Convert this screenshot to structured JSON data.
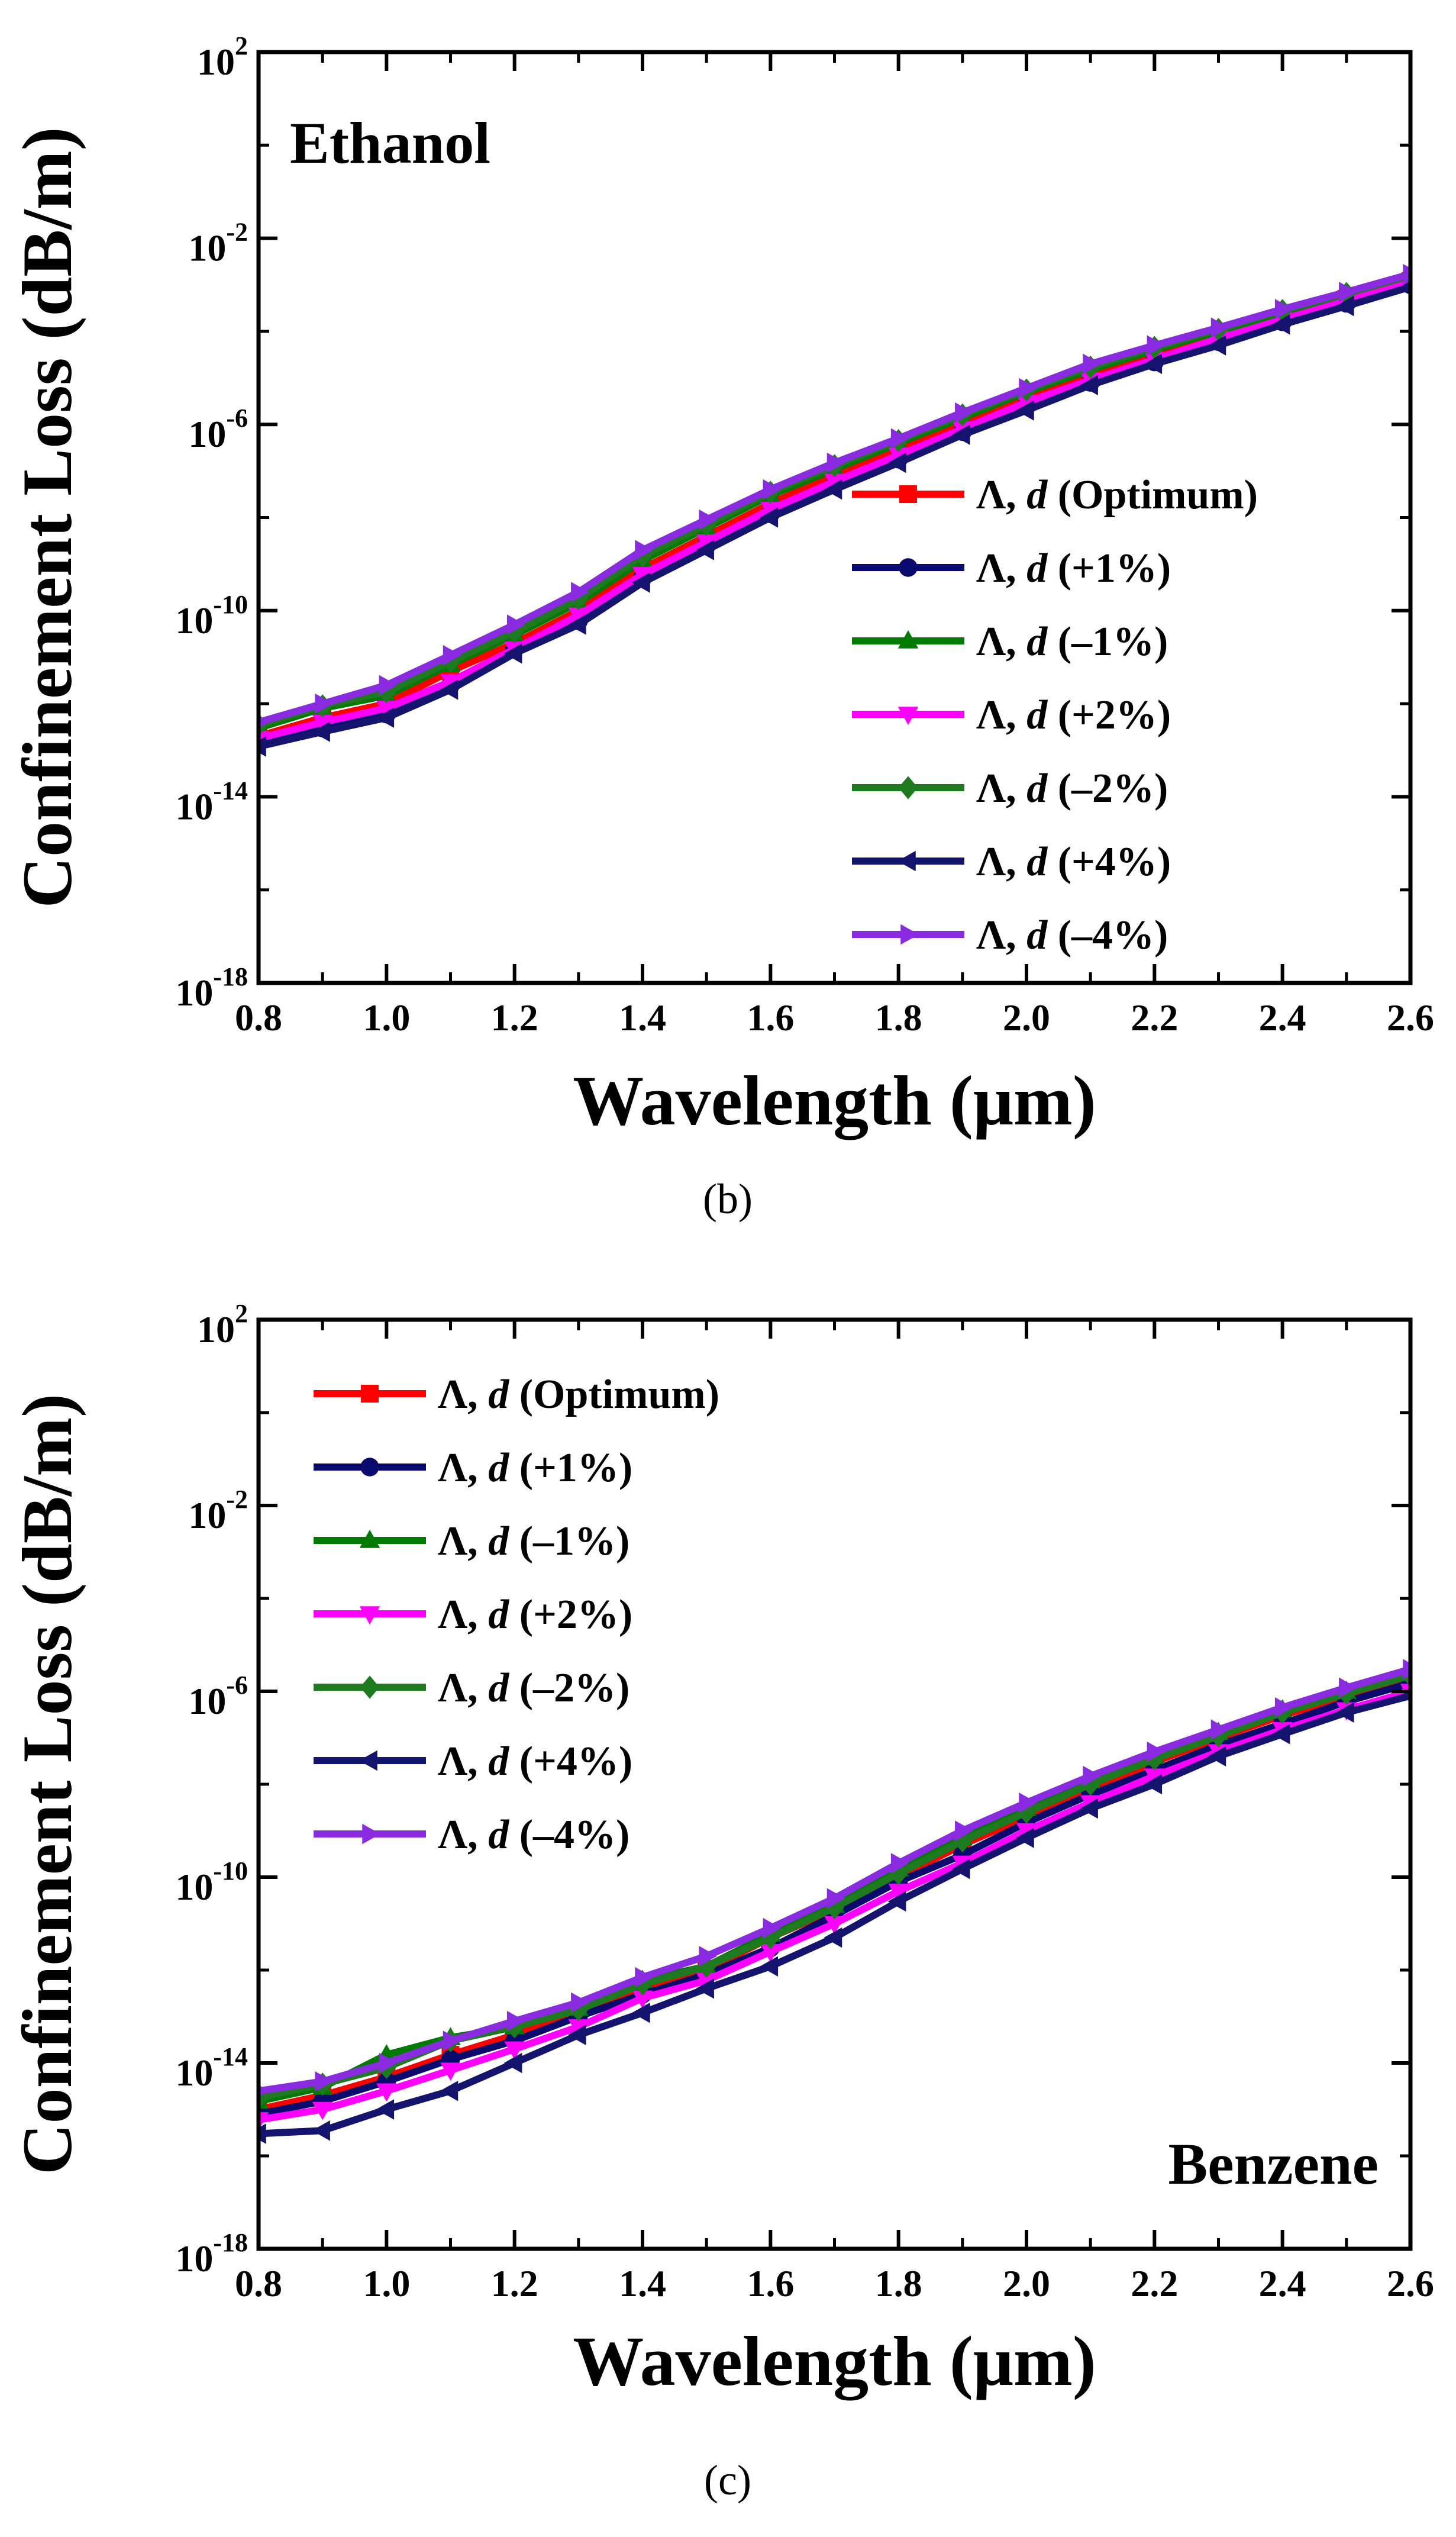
{
  "chart_data": [
    {
      "type": "line",
      "panel_label": "(b)",
      "annotation": "Ethanol",
      "xlabel": "Wavelength (μm)",
      "ylabel": "Confinement Loss (dB/m)",
      "x_scale": "linear",
      "y_scale": "log",
      "xlim": [
        0.8,
        2.6
      ],
      "ylim": [
        1e-18,
        100
      ],
      "x_ticks": [
        "0.8",
        "1.0",
        "1.2",
        "1.4",
        "1.6",
        "1.8",
        "2.0",
        "2.2",
        "2.4",
        "2.6"
      ],
      "y_ticks": [
        {
          "base": "10",
          "exp": "2"
        },
        {
          "base": "10",
          "exp": "-2"
        },
        {
          "base": "10",
          "exp": "-6"
        },
        {
          "base": "10",
          "exp": "-10"
        },
        {
          "base": "10",
          "exp": "-14"
        },
        {
          "base": "10",
          "exp": "-18"
        }
      ],
      "grid": false,
      "legend_position": "right",
      "x": [
        0.8,
        0.9,
        1.0,
        1.1,
        1.2,
        1.3,
        1.4,
        1.5,
        1.6,
        1.7,
        1.8,
        1.9,
        2.0,
        2.1,
        2.2,
        2.3,
        2.4,
        2.5,
        2.6
      ],
      "series": [
        {
          "name_prefix": "Λ, ",
          "name_italic": "d",
          "name_suffix": " (Optimum)",
          "color": "#ff0000",
          "marker": "square",
          "values": [
            2e-13,
            5e-13,
            1e-12,
            5e-12,
            2e-11,
            1e-10,
            8e-10,
            4e-09,
            2e-08,
            8e-08,
            3e-07,
            1e-06,
            4e-06,
            1.2e-05,
            3e-05,
            8e-05,
            0.0002,
            0.0005,
            0.0012
          ]
        },
        {
          "name_prefix": "Λ, ",
          "name_italic": "d",
          "name_suffix": " (+1%)",
          "color": "#0a0a6e",
          "marker": "circle",
          "values": [
            1.5e-13,
            3e-13,
            6e-13,
            2.5e-12,
            1.5e-11,
            6e-11,
            5e-10,
            2.5e-09,
            1.2e-08,
            5e-08,
            1.8e-07,
            7e-07,
            2.5e-06,
            8e-06,
            2.2e-05,
            6e-05,
            0.00016,
            0.0004,
            0.001
          ]
        },
        {
          "name_prefix": "Λ, ",
          "name_italic": "d",
          "name_suffix": " (–1%)",
          "color": "#007a00",
          "marker": "triangle-up",
          "values": [
            3e-13,
            8e-13,
            1.5e-12,
            7e-12,
            3e-11,
            1.5e-10,
            1.2e-09,
            6e-09,
            3e-08,
            1.1e-07,
            4e-07,
            1.4e-06,
            5e-06,
            1.5e-05,
            4e-05,
            0.0001,
            0.00025,
            0.0006,
            0.0015
          ]
        },
        {
          "name_prefix": "Λ, ",
          "name_italic": "d",
          "name_suffix": " (+2%)",
          "color": "#ff00ff",
          "marker": "triangle-down",
          "values": [
            1.8e-13,
            4e-13,
            8e-13,
            3e-12,
            1.5e-11,
            8e-11,
            6e-10,
            3e-09,
            1.5e-08,
            6e-08,
            2.2e-07,
            8e-07,
            3e-06,
            9e-06,
            2.5e-05,
            7e-05,
            0.00018,
            0.00045,
            0.0011
          ]
        },
        {
          "name_prefix": "Λ, ",
          "name_italic": "d",
          "name_suffix": " (–2%)",
          "color": "#1e7a1e",
          "marker": "diamond",
          "values": [
            3.5e-13,
            9e-13,
            1.8e-12,
            8e-12,
            3.5e-11,
            1.8e-10,
            1.5e-09,
            7e-09,
            3.5e-08,
            1.3e-07,
            4.5e-07,
            1.6e-06,
            5.5e-06,
            1.7e-05,
            4.5e-05,
            0.00011,
            0.00028,
            0.00065,
            0.0016
          ]
        },
        {
          "name_prefix": "Λ, ",
          "name_italic": "d",
          "name_suffix": " (+4%)",
          "color": "#14146e",
          "marker": "triangle-left",
          "values": [
            1.2e-13,
            2.5e-13,
            5e-13,
            2e-12,
            1.2e-11,
            5e-11,
            4e-10,
            2e-09,
            1e-08,
            4e-08,
            1.5e-07,
            6e-07,
            2e-06,
            7e-06,
            2e-05,
            5e-05,
            0.00014,
            0.00035,
            0.0009
          ]
        },
        {
          "name_prefix": "Λ, ",
          "name_italic": "d",
          "name_suffix": " (–4%)",
          "color": "#8a2be2",
          "marker": "triangle-right",
          "values": [
            4e-13,
            1e-12,
            2.5e-12,
            1.1e-11,
            5e-11,
            2.5e-10,
            2e-09,
            9e-09,
            4e-08,
            1.5e-07,
            5e-07,
            1.8e-06,
            6e-06,
            2e-05,
            5e-05,
            0.00012,
            0.0003,
            0.0007,
            0.0017
          ]
        }
      ]
    },
    {
      "type": "line",
      "panel_label": "(c)",
      "annotation": "Benzene",
      "xlabel": "Wavelength (μm)",
      "ylabel": "Confinement Loss (dB/m)",
      "x_scale": "linear",
      "y_scale": "log",
      "xlim": [
        0.8,
        2.6
      ],
      "ylim": [
        1e-18,
        100
      ],
      "x_ticks": [
        "0.8",
        "1.0",
        "1.2",
        "1.4",
        "1.6",
        "1.8",
        "2.0",
        "2.2",
        "2.4",
        "2.6"
      ],
      "y_ticks": [
        {
          "base": "10",
          "exp": "2"
        },
        {
          "base": "10",
          "exp": "-2"
        },
        {
          "base": "10",
          "exp": "-6"
        },
        {
          "base": "10",
          "exp": "-10"
        },
        {
          "base": "10",
          "exp": "-14"
        },
        {
          "base": "10",
          "exp": "-18"
        }
      ],
      "grid": false,
      "legend_position": "top-left",
      "x": [
        0.8,
        0.9,
        1.0,
        1.1,
        1.2,
        1.3,
        1.4,
        1.5,
        1.6,
        1.7,
        1.8,
        1.9,
        2.0,
        2.1,
        2.2,
        2.3,
        2.4,
        2.5,
        2.6
      ],
      "series": [
        {
          "name_prefix": "Λ, ",
          "name_italic": "d",
          "name_suffix": " (Optimum)",
          "color": "#ff0000",
          "marker": "square",
          "values": [
            1e-15,
            2e-15,
            5e-15,
            1.5e-14,
            4e-14,
            1.2e-13,
            4e-13,
            1e-12,
            5e-12,
            2e-11,
            1e-10,
            5e-10,
            2e-09,
            8e-09,
            3e-08,
            1e-07,
            3e-07,
            8e-07,
            2e-06
          ]
        },
        {
          "name_prefix": "Λ, ",
          "name_italic": "d",
          "name_suffix": " (+1%)",
          "color": "#0a0a6e",
          "marker": "circle",
          "values": [
            8e-16,
            1.5e-15,
            4e-15,
            1.2e-14,
            3e-14,
            1e-13,
            3e-13,
            8e-13,
            3e-12,
            1.5e-11,
            8e-11,
            3e-10,
            1.5e-09,
            6e-09,
            2e-08,
            7e-08,
            2e-07,
            6e-07,
            1.5e-06
          ]
        },
        {
          "name_prefix": "Λ, ",
          "name_italic": "d",
          "name_suffix": " (–1%)",
          "color": "#007a00",
          "marker": "triangle-up",
          "values": [
            1.5e-15,
            3e-15,
            1.5e-14,
            3.5e-14,
            6e-14,
            1.5e-13,
            6e-13,
            1.2e-12,
            6e-12,
            2.5e-11,
            1.5e-10,
            7e-10,
            3e-09,
            1.2e-08,
            4e-08,
            1.3e-07,
            4e-07,
            1e-06,
            2.5e-06
          ]
        },
        {
          "name_prefix": "Λ, ",
          "name_italic": "d",
          "name_suffix": " (+2%)",
          "color": "#ff00ff",
          "marker": "triangle-down",
          "values": [
            6e-16,
            1e-15,
            2.5e-15,
            7e-15,
            2e-14,
            6e-14,
            2.5e-13,
            6e-13,
            2.5e-12,
            1e-11,
            5e-11,
            2e-10,
            1e-09,
            4e-09,
            1.5e-08,
            5e-08,
            1.5e-07,
            4e-07,
            1e-06
          ]
        },
        {
          "name_prefix": "Λ, ",
          "name_italic": "d",
          "name_suffix": " (–2%)",
          "color": "#1e7a1e",
          "marker": "diamond",
          "values": [
            1.8e-15,
            3.5e-15,
            8e-15,
            3e-14,
            6e-14,
            1.4e-13,
            5e-13,
            1.2e-12,
            5e-12,
            2.2e-11,
            1.2e-10,
            6e-10,
            2.5e-09,
            1e-08,
            3.5e-08,
            1.1e-07,
            3.5e-07,
            9e-07,
            2.2e-06
          ]
        },
        {
          "name_prefix": "Λ, ",
          "name_italic": "d",
          "name_suffix": " (+4%)",
          "color": "#14146e",
          "marker": "triangle-left",
          "values": [
            3e-16,
            3.5e-16,
            1e-15,
            2.5e-15,
            1e-14,
            4e-14,
            1.2e-13,
            4e-13,
            1.2e-12,
            5e-12,
            3e-11,
            1.5e-10,
            7e-10,
            3e-09,
            1e-08,
            4e-08,
            1.2e-07,
            3.5e-07,
            8e-07
          ]
        },
        {
          "name_prefix": "Λ, ",
          "name_italic": "d",
          "name_suffix": " (–4%)",
          "color": "#8a2be2",
          "marker": "triangle-right",
          "values": [
            2.5e-15,
            4e-15,
            1e-14,
            3e-14,
            8e-14,
            2e-13,
            7e-13,
            2e-12,
            8e-12,
            3.5e-11,
            2e-10,
            1e-09,
            4e-09,
            1.5e-08,
            5e-08,
            1.5e-07,
            4.5e-07,
            1.2e-06,
            3e-06
          ]
        }
      ]
    }
  ]
}
